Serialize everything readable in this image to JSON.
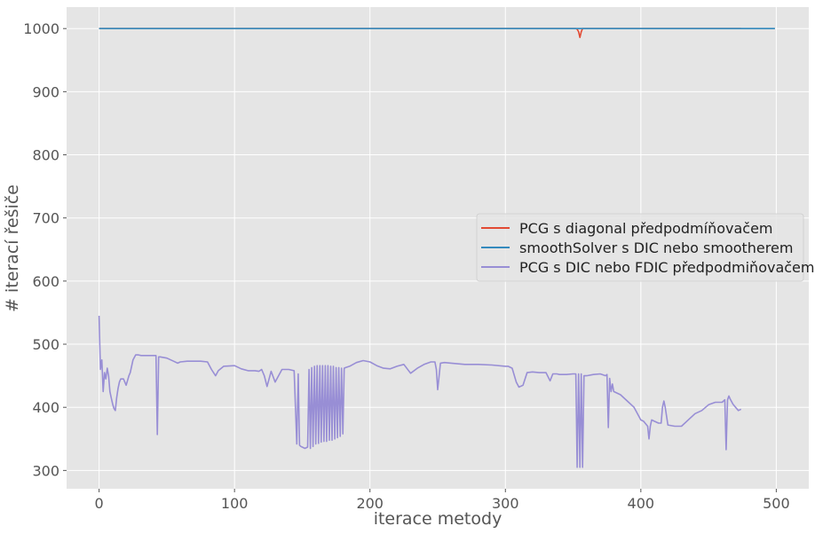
{
  "chart_data": {
    "type": "line",
    "title": "",
    "xlabel": "iterace metody",
    "ylabel": "# iterací řešiče",
    "xlim": [
      -24,
      524
    ],
    "ylim": [
      271,
      1034
    ],
    "xticks": [
      0,
      100,
      200,
      300,
      400,
      500
    ],
    "yticks": [
      300,
      400,
      500,
      600,
      700,
      800,
      900,
      1000
    ],
    "grid": true,
    "legend_position": "center-right",
    "series": [
      {
        "name": "PCG s diagonal předpodmíňovačem",
        "color": "#E24A33",
        "x": [
          0,
          352,
          353,
          354,
          355,
          356,
          357,
          474
        ],
        "y": [
          1000,
          1000,
          999,
          995,
          986,
          995,
          1000,
          1000
        ]
      },
      {
        "name": "smoothSolver s DIC nebo smootherem",
        "color": "#348ABD",
        "x": [
          0,
          100,
          200,
          300,
          400,
          499
        ],
        "y": [
          1000,
          1000,
          1000,
          1000,
          1000,
          1000
        ]
      },
      {
        "name": "PCG s DIC nebo FDIC předpodmiňovačem",
        "color": "#988ED5",
        "x": [
          0,
          1,
          2,
          3,
          4,
          5,
          6,
          7,
          8,
          9,
          10,
          11,
          12,
          13,
          14,
          15,
          16,
          18,
          20,
          22,
          23,
          25,
          27,
          29,
          31,
          35,
          40,
          42,
          43,
          44,
          45,
          50,
          55,
          58,
          60,
          65,
          70,
          75,
          80,
          83,
          86,
          88,
          92,
          100,
          105,
          110,
          115,
          118,
          120,
          122,
          124,
          127,
          130,
          135,
          140,
          144,
          146,
          147,
          148,
          149,
          150,
          152,
          154,
          155,
          156,
          157,
          158,
          159,
          160,
          161,
          162,
          163,
          164,
          165,
          166,
          167,
          168,
          169,
          170,
          171,
          172,
          173,
          174,
          175,
          176,
          177,
          178,
          179,
          180,
          181,
          182,
          185,
          190,
          195,
          200,
          205,
          210,
          215,
          220,
          225,
          230,
          235,
          240,
          245,
          248,
          249,
          250,
          252,
          255,
          260,
          270,
          280,
          290,
          300,
          302,
          305,
          308,
          310,
          313,
          316,
          320,
          325,
          330,
          333,
          335,
          338,
          340,
          345,
          350,
          352,
          353,
          354,
          355,
          356,
          357,
          358,
          360,
          365,
          370,
          374,
          375,
          376,
          377,
          378,
          379,
          380,
          385,
          390,
          395,
          400,
          402,
          405,
          406,
          407,
          408,
          410,
          413,
          415,
          416,
          417,
          418,
          420,
          425,
          430,
          435,
          440,
          445,
          450,
          455,
          460,
          462,
          463,
          464,
          465,
          466,
          468,
          470,
          472,
          474
        ],
        "y": [
          545,
          460,
          475,
          425,
          455,
          445,
          462,
          450,
          425,
          415,
          405,
          398,
          395,
          415,
          430,
          440,
          445,
          445,
          435,
          450,
          455,
          475,
          483,
          483,
          482,
          482,
          482,
          482,
          357,
          480,
          480,
          478,
          473,
          470,
          472,
          473,
          473,
          473,
          472,
          460,
          450,
          458,
          465,
          466,
          461,
          458,
          458,
          457,
          460,
          450,
          433,
          457,
          440,
          460,
          460,
          458,
          342,
          453,
          340,
          338,
          337,
          335,
          337,
          460,
          335,
          463,
          338,
          465,
          342,
          466,
          343,
          466,
          345,
          466,
          346,
          466,
          346,
          466,
          348,
          465,
          348,
          465,
          350,
          463,
          352,
          463,
          354,
          462,
          358,
          462,
          463,
          465,
          471,
          474,
          472,
          466,
          462,
          461,
          465,
          468,
          454,
          462,
          468,
          472,
          472,
          460,
          428,
          470,
          471,
          470,
          468,
          468,
          467,
          465,
          465,
          462,
          440,
          432,
          435,
          455,
          456,
          455,
          455,
          442,
          453,
          453,
          452,
          452,
          453,
          453,
          305,
          453,
          305,
          453,
          305,
          450,
          450,
          452,
          453,
          450,
          452,
          368,
          446,
          425,
          437,
          425,
          420,
          410,
          400,
          380,
          378,
          370,
          350,
          370,
          380,
          378,
          375,
          375,
          400,
          410,
          400,
          372,
          370,
          370,
          380,
          390,
          395,
          404,
          408,
          408,
          412,
          333,
          412,
          418,
          413,
          405,
          400,
          395,
          397
        ]
      }
    ]
  }
}
